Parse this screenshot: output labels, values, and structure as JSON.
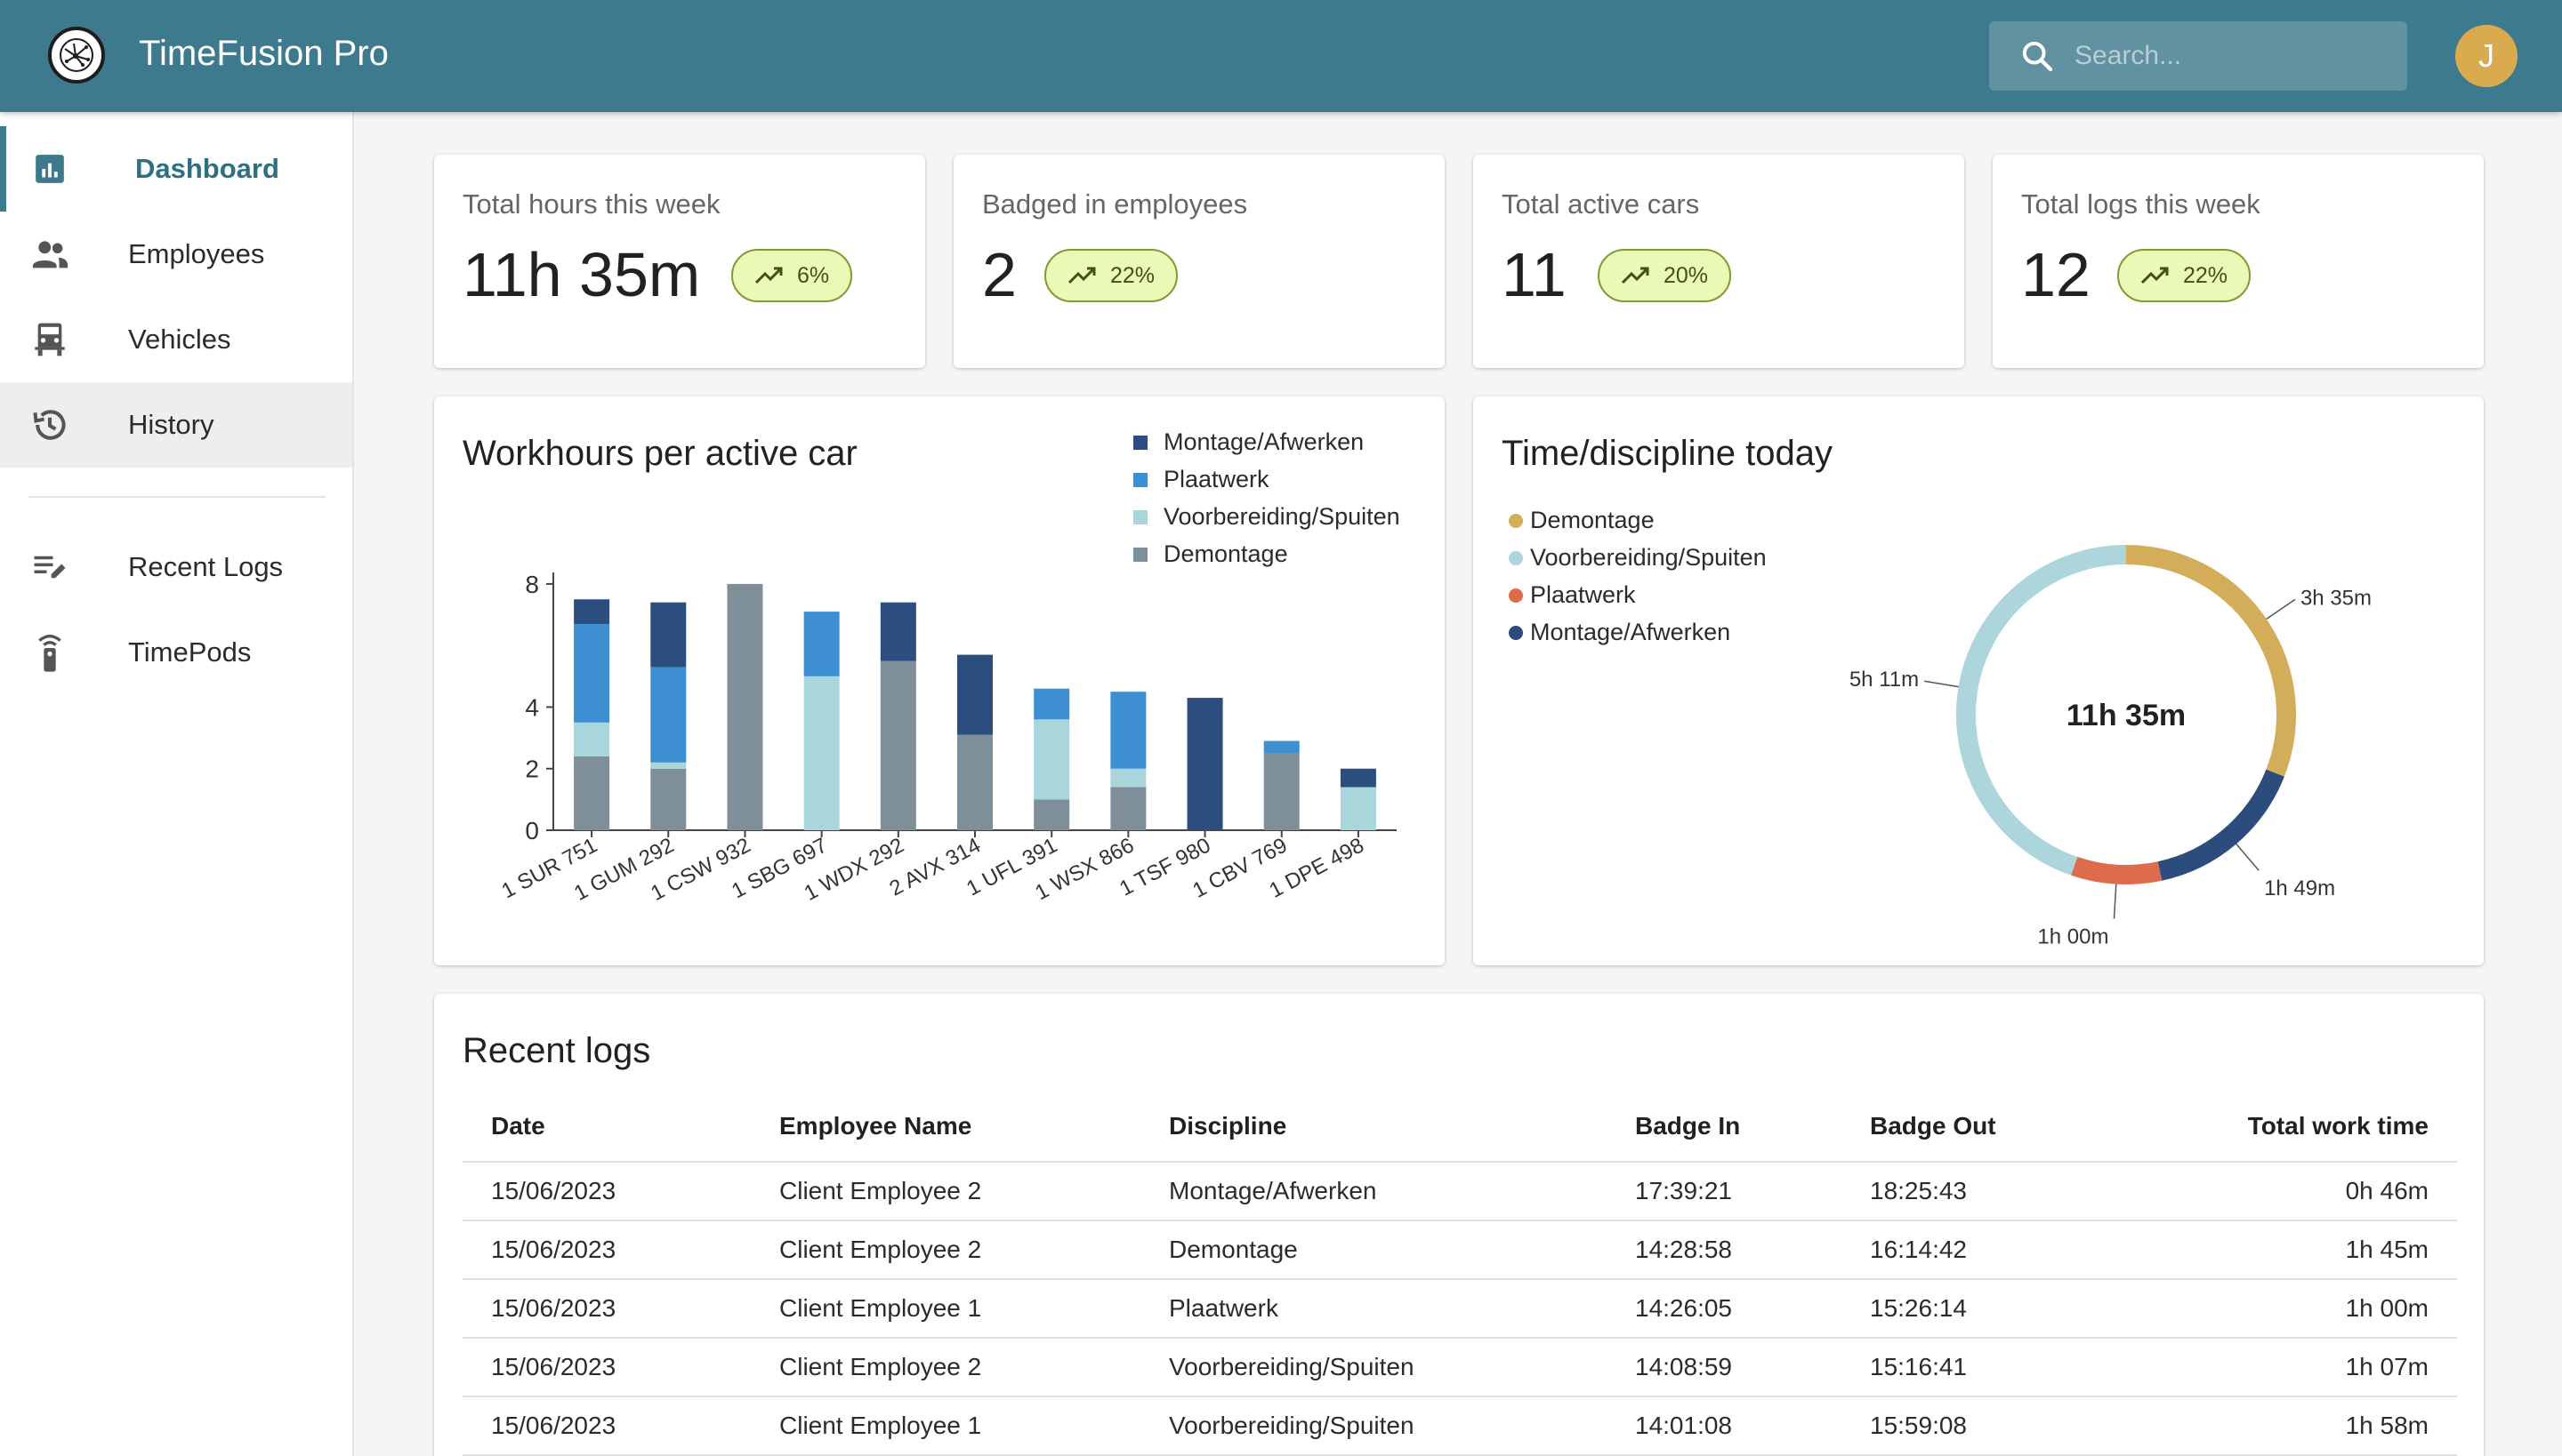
{
  "app": {
    "title": "TimeFusion Pro",
    "search_placeholder": "Search...",
    "avatar_initial": "J"
  },
  "sidebar": {
    "items": [
      {
        "label": "Dashboard",
        "icon": "dashboard-icon"
      },
      {
        "label": "Employees",
        "icon": "people-icon"
      },
      {
        "label": "Vehicles",
        "icon": "car-icon"
      },
      {
        "label": "History",
        "icon": "history-icon"
      },
      {
        "label": "Recent Logs",
        "icon": "edit-list-icon"
      },
      {
        "label": "TimePods",
        "icon": "remote-icon"
      }
    ]
  },
  "stats": [
    {
      "label": "Total hours this week",
      "value": "11h 35m",
      "trend": "6%"
    },
    {
      "label": "Badged in employees",
      "value": "2",
      "trend": "22%"
    },
    {
      "label": "Total active cars",
      "value": "11",
      "trend": "20%"
    },
    {
      "label": "Total logs this week",
      "value": "12",
      "trend": "22%"
    }
  ],
  "colors": {
    "accent": "#3e7a8d",
    "montage": "#2c4e7e",
    "plaatwerk": "#3d8fd1",
    "voorbereiding": "#a9d6dc",
    "demontage": "#7f8f9a",
    "donut_demontage": "#d4ad5a",
    "donut_voorbereiding": "#acd5dc",
    "donut_plaatwerk": "#dd6c4c",
    "donut_montage": "#2b4c7c",
    "trend_bg": "#ebf9b7"
  },
  "bar_chart_title": "Workhours per active car",
  "donut_chart_title": "Time/discipline today",
  "chart_data": [
    {
      "type": "bar",
      "stacked": true,
      "title": "Workhours per active car",
      "categories": [
        "1 SUR 751",
        "1 GUM 292",
        "1 CSW 932",
        "1 SBG 697",
        "1 WDX 292",
        "2 AVX 314",
        "1 UFL 391",
        "1 WSX 866",
        "1 TSF 980",
        "1 CBV 769",
        "1 DPE 498"
      ],
      "series": [
        {
          "name": "Demontage",
          "color": "#7f8f9a",
          "values": [
            2.4,
            2.0,
            8.0,
            0,
            5.5,
            3.1,
            1.0,
            1.4,
            0,
            2.5,
            0
          ]
        },
        {
          "name": "Voorbereiding/Spuiten",
          "color": "#a9d6dc",
          "values": [
            1.1,
            0.2,
            0,
            5.0,
            0,
            0,
            2.6,
            0.6,
            0,
            0,
            1.4
          ]
        },
        {
          "name": "Plaatwerk",
          "color": "#3d8fd1",
          "values": [
            3.2,
            3.1,
            0,
            2.1,
            0,
            0,
            1.0,
            2.5,
            0,
            0.4,
            0
          ]
        },
        {
          "name": "Montage/Afwerken",
          "color": "#2c4e7e",
          "values": [
            0.8,
            2.1,
            0,
            0,
            1.9,
            2.6,
            0,
            0,
            4.3,
            0,
            0.6
          ]
        }
      ],
      "legend_order": [
        "Montage/Afwerken",
        "Plaatwerk",
        "Voorbereiding/Spuiten",
        "Demontage"
      ],
      "y_ticks": [
        0,
        2,
        4,
        8
      ],
      "ylim": [
        0,
        8.2
      ],
      "legend_position": "top-right",
      "grid": false
    },
    {
      "type": "pie",
      "donut": true,
      "title": "Time/discipline today",
      "center_label": "11h 35m",
      "slices": [
        {
          "name": "Demontage",
          "value_minutes": 215,
          "label": "3h 35m",
          "color": "#d4ad5a"
        },
        {
          "name": "Montage/Afwerken",
          "value_minutes": 109,
          "label": "1h 49m",
          "color": "#2b4c7c"
        },
        {
          "name": "Plaatwerk",
          "value_minutes": 60,
          "label": "1h 00m",
          "color": "#dd6c4c"
        },
        {
          "name": "Voorbereiding/Spuiten",
          "value_minutes": 311,
          "label": "5h 11m",
          "color": "#acd5dc"
        }
      ],
      "legend_order": [
        "Demontage",
        "Voorbereiding/Spuiten",
        "Plaatwerk",
        "Montage/Afwerken"
      ],
      "legend_position": "top-left"
    }
  ],
  "recent_logs": {
    "title": "Recent logs",
    "headers": {
      "date": "Date",
      "name": "Employee Name",
      "discipline": "Discipline",
      "badge_in": "Badge In",
      "badge_out": "Badge Out",
      "total": "Total work time"
    },
    "rows": [
      {
        "date": "15/06/2023",
        "name": "Client Employee 2",
        "discipline": "Montage/Afwerken",
        "badge_in": "17:39:21",
        "badge_out": "18:25:43",
        "total": "0h 46m"
      },
      {
        "date": "15/06/2023",
        "name": "Client Employee 2",
        "discipline": "Demontage",
        "badge_in": "14:28:58",
        "badge_out": "16:14:42",
        "total": "1h 45m"
      },
      {
        "date": "15/06/2023",
        "name": "Client Employee 1",
        "discipline": "Plaatwerk",
        "badge_in": "14:26:05",
        "badge_out": "15:26:14",
        "total": "1h 00m"
      },
      {
        "date": "15/06/2023",
        "name": "Client Employee 2",
        "discipline": "Voorbereiding/Spuiten",
        "badge_in": "14:08:59",
        "badge_out": "15:16:41",
        "total": "1h 07m"
      },
      {
        "date": "15/06/2023",
        "name": "Client Employee 1",
        "discipline": "Voorbereiding/Spuiten",
        "badge_in": "14:01:08",
        "badge_out": "15:59:08",
        "total": "1h 58m"
      }
    ]
  }
}
